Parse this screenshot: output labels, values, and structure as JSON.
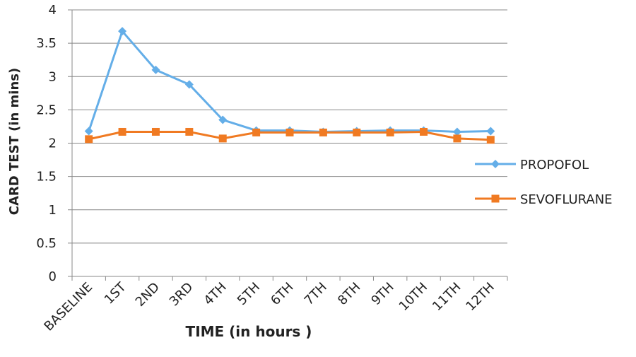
{
  "chart_data": {
    "type": "line",
    "x_label": "TIME (in hours )",
    "y_label": "CARD TEST (in mins)",
    "categories": [
      "BASELINE",
      "1ST",
      "2ND",
      "3RD",
      "4TH",
      "5TH",
      "6TH",
      "7TH",
      "8TH",
      "9TH",
      "10TH",
      "11TH",
      "12TH"
    ],
    "series": [
      {
        "name": "PROPOFOL",
        "color": "#64aee8",
        "marker": "diamond",
        "values": [
          2.18,
          3.68,
          3.1,
          2.88,
          2.35,
          2.19,
          2.19,
          2.17,
          2.18,
          2.19,
          2.19,
          2.17,
          2.18
        ]
      },
      {
        "name": "SEVOFLURANE",
        "color": "#f07a22",
        "marker": "square",
        "values": [
          2.06,
          2.17,
          2.17,
          2.17,
          2.07,
          2.16,
          2.16,
          2.16,
          2.16,
          2.16,
          2.17,
          2.07,
          2.05
        ]
      }
    ],
    "ylim": [
      0,
      4
    ],
    "yticks": [
      0,
      0.5,
      1,
      1.5,
      2,
      2.5,
      3,
      3.5,
      4
    ],
    "grid": true,
    "legend": "right"
  }
}
